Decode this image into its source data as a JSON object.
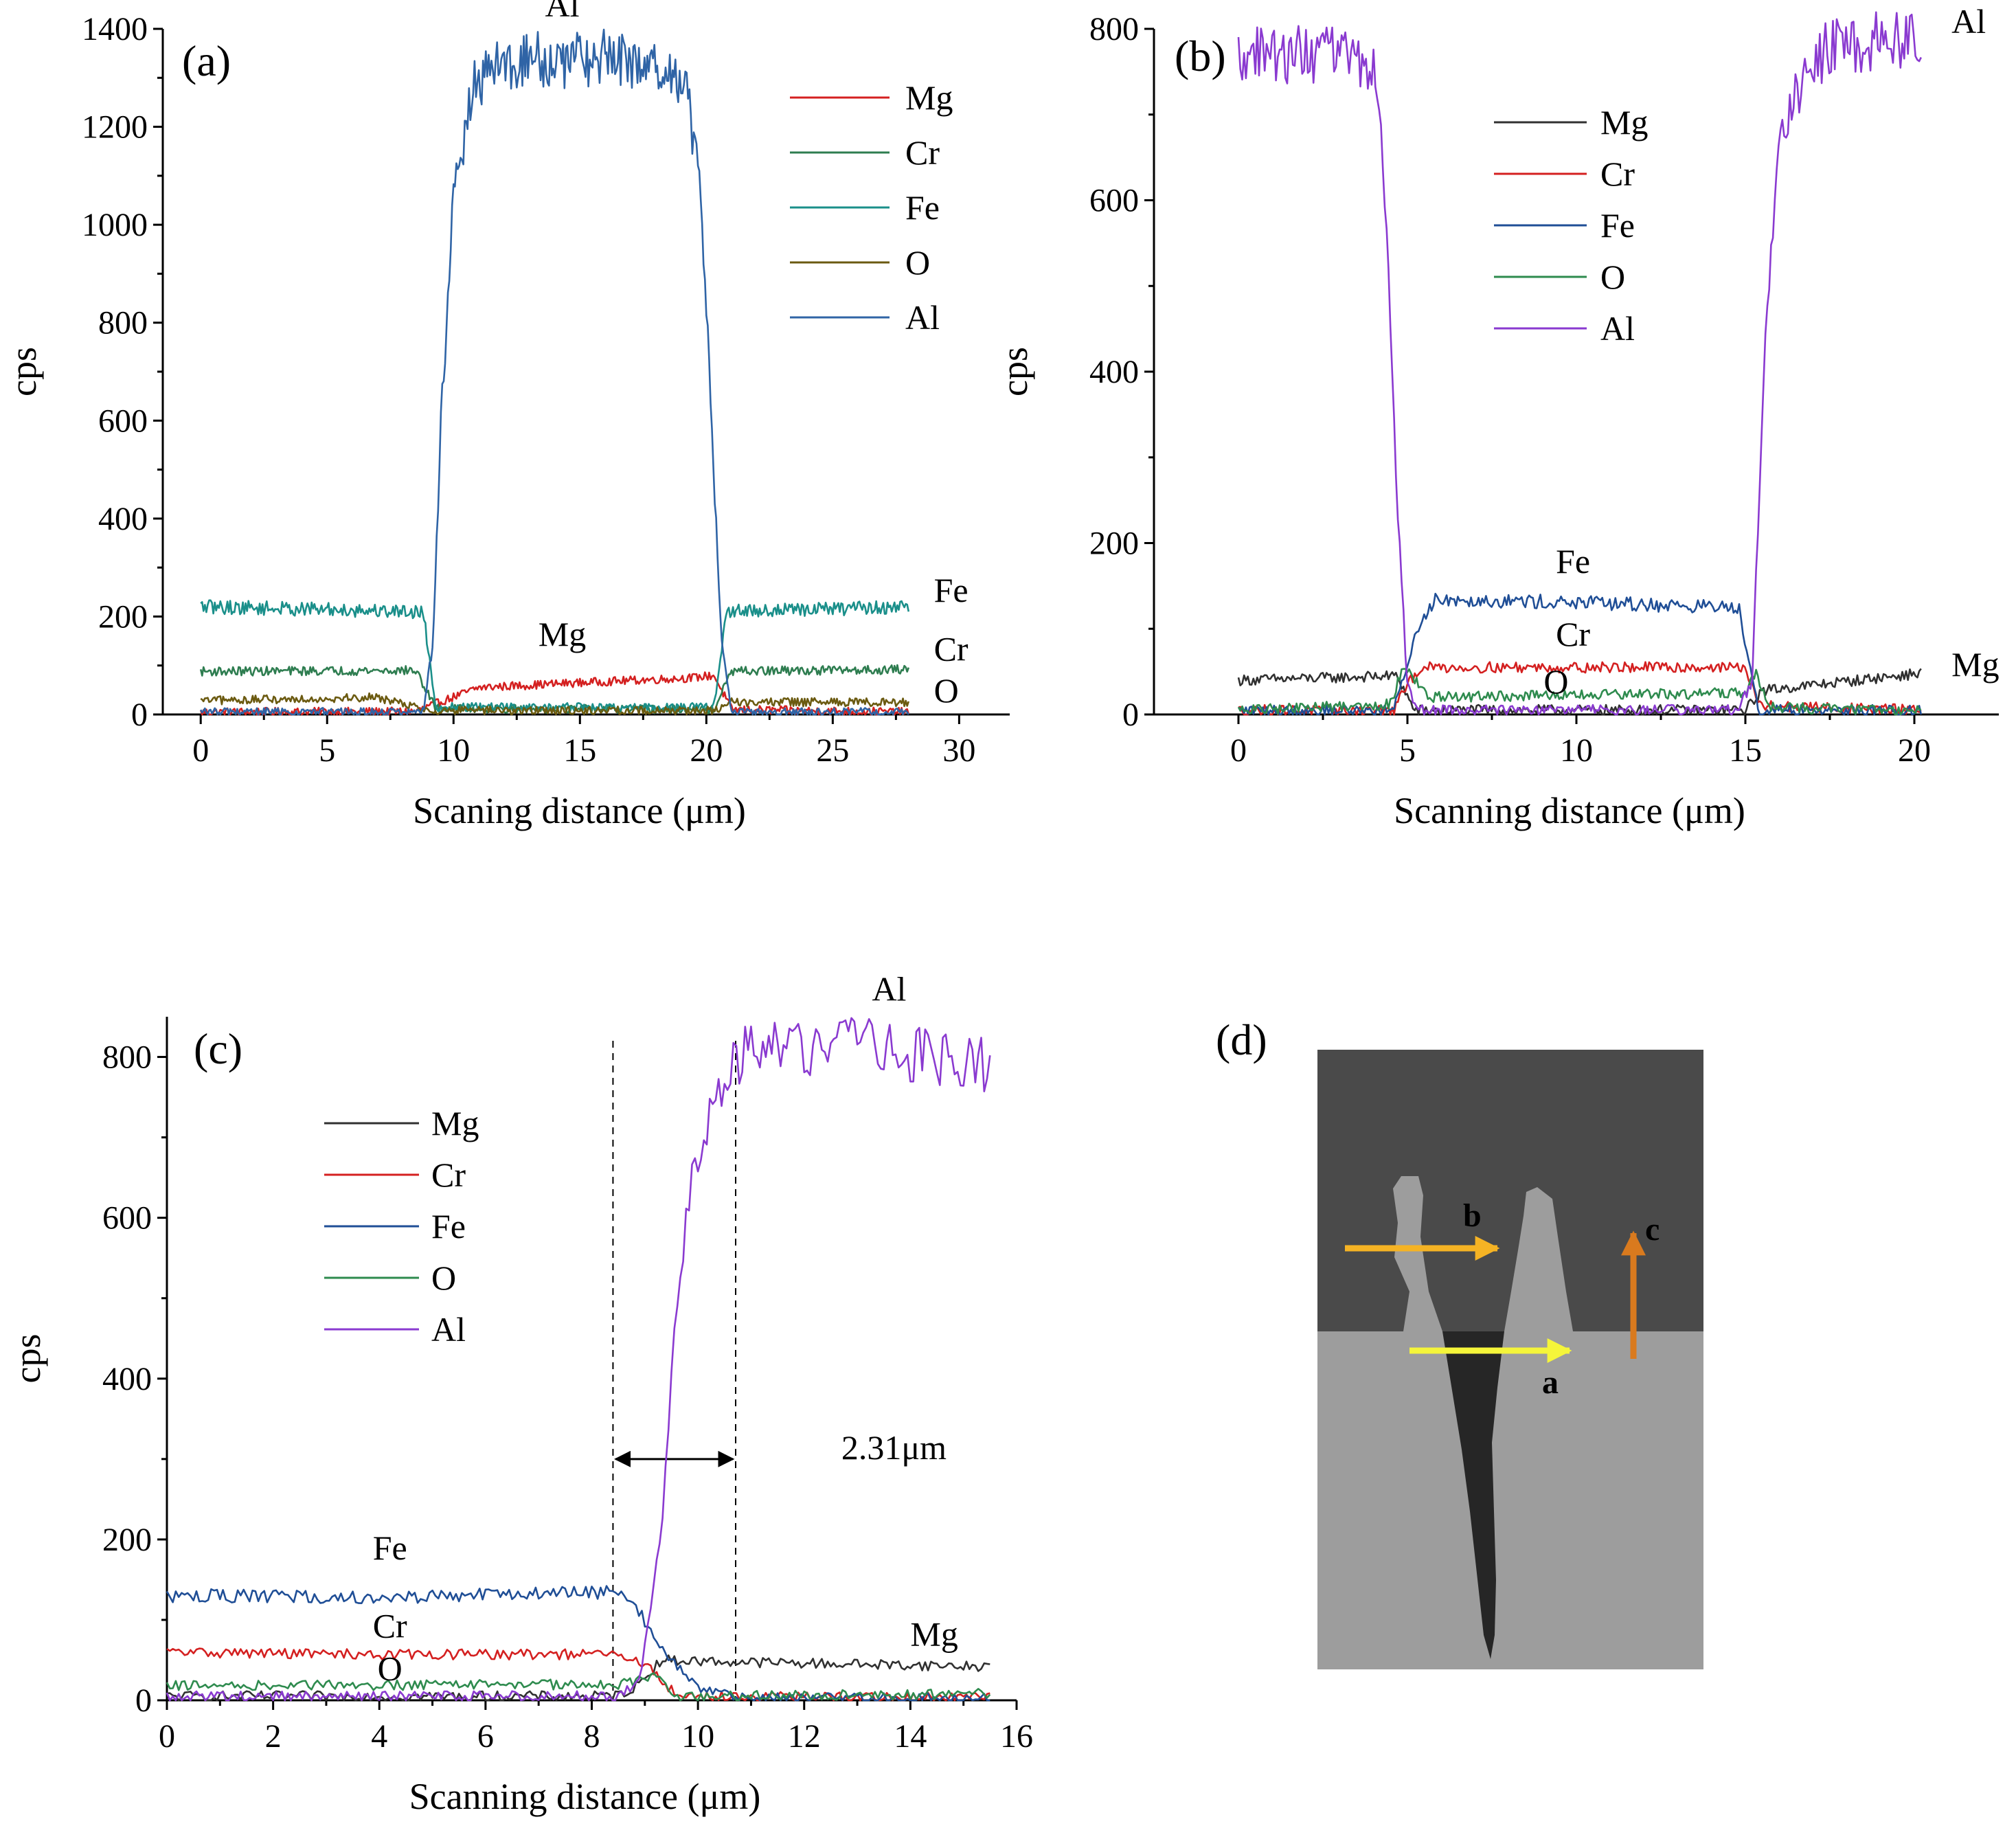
{
  "figure": {
    "colors": {
      "axis": "#000000",
      "Mg_a": "#d42020",
      "Mg": "#303030",
      "Cr_a": "#2e7d50",
      "Cr": "#d42020",
      "Fe_a": "#1a8f8a",
      "Fe": "#1f4e96",
      "O_a": "#6b5a10",
      "O": "#2e8b4e",
      "Al_a": "#2f64a6",
      "Al": "#8a3ad0"
    },
    "image_d": {
      "label": "(d)",
      "markers": {
        "a": "a",
        "b": "b",
        "c": "c"
      },
      "colors": {
        "arrow_a": "#f5f53a",
        "arrow_b": "#f5b324",
        "arrow_c": "#d97a1e",
        "alloy_bg": "#9d9d9d",
        "resin_bg": "#4a4a4a",
        "crack": "#252525"
      }
    }
  },
  "chart_data": [
    {
      "id": "a",
      "label": "(a)",
      "type": "line",
      "xlabel": "Scaning distance (μm)",
      "ylabel": "cps",
      "xlim": [
        -1.5,
        32
      ],
      "ylim": [
        0,
        1400
      ],
      "xticks": [
        0,
        5,
        10,
        15,
        20,
        25,
        30
      ],
      "yticks": [
        0,
        200,
        400,
        600,
        800,
        1000,
        1200,
        1400
      ],
      "legend": {
        "position": "top-right",
        "entries": [
          "Mg",
          "Cr",
          "Fe",
          "O",
          "Al"
        ]
      },
      "annotations": [
        {
          "text": "Al",
          "x": 14.3,
          "y": 1425
        },
        {
          "text": "Mg",
          "x": 14.3,
          "y": 140
        },
        {
          "text": "Fe",
          "x": 29.0,
          "y": 230
        },
        {
          "text": "Cr",
          "x": 29.0,
          "y": 110
        },
        {
          "text": "O",
          "x": 29.0,
          "y": 25
        }
      ],
      "series": [
        {
          "name": "Mg",
          "color_key": "Mg_a",
          "x": [
            0,
            8.5,
            9.3,
            11,
            15,
            19.5,
            20.3,
            21,
            28
          ],
          "y": [
            5,
            6,
            22,
            55,
            65,
            75,
            80,
            10,
            5
          ]
        },
        {
          "name": "Cr",
          "color_key": "Cr_a",
          "x": [
            0,
            8.5,
            9.3,
            20.3,
            21,
            28
          ],
          "y": [
            88,
            90,
            12,
            10,
            88,
            92
          ]
        },
        {
          "name": "Fe",
          "color_key": "Fe_a",
          "x": [
            0,
            8.8,
            9.3,
            20.3,
            20.8,
            28
          ],
          "y": [
            220,
            210,
            15,
            15,
            210,
            220
          ]
        },
        {
          "name": "O",
          "color_key": "O_a",
          "x": [
            0,
            7,
            9,
            20.5,
            21,
            28
          ],
          "y": [
            28,
            35,
            8,
            8,
            25,
            25
          ]
        },
        {
          "name": "Al",
          "color_key": "Al_a",
          "x": [
            0,
            8.8,
            9.2,
            9.5,
            10,
            10.7,
            11.5,
            13,
            16,
            18.5,
            19.3,
            19.8,
            20.2,
            20.6,
            21,
            28
          ],
          "y": [
            5,
            5,
            150,
            600,
            1050,
            1270,
            1320,
            1335,
            1340,
            1320,
            1250,
            1050,
            600,
            150,
            5,
            5
          ]
        }
      ]
    },
    {
      "id": "b",
      "label": "(b)",
      "type": "line",
      "xlabel": "Scanning distance (μm)",
      "ylabel": "cps",
      "xlim": [
        -2.5,
        22.5
      ],
      "ylim": [
        0,
        800
      ],
      "xticks": [
        0,
        5,
        10,
        15,
        20
      ],
      "yticks": [
        0,
        200,
        400,
        600,
        800
      ],
      "legend": {
        "position": "top-center",
        "entries": [
          "Mg",
          "Cr",
          "Fe",
          "O",
          "Al"
        ]
      },
      "annotations": [
        {
          "text": "Al",
          "x": 21.1,
          "y": 795
        },
        {
          "text": "Fe",
          "x": 9.9,
          "y": 165
        },
        {
          "text": "Cr",
          "x": 9.9,
          "y": 80
        },
        {
          "text": "O",
          "x": 9.4,
          "y": 25
        },
        {
          "text": "Mg",
          "x": 21.1,
          "y": 45
        }
      ],
      "series": [
        {
          "name": "Mg",
          "color_key": "Mg",
          "x": [
            0,
            4.7,
            5.2,
            15.0,
            15.5,
            20.2
          ],
          "y": [
            40,
            45,
            5,
            5,
            28,
            48
          ]
        },
        {
          "name": "Cr",
          "color_key": "Cr",
          "x": [
            0,
            4.6,
            5.0,
            5.4,
            15.0,
            15.4,
            20.2
          ],
          "y": [
            5,
            5,
            35,
            55,
            55,
            10,
            5
          ]
        },
        {
          "name": "Fe",
          "color_key": "Fe",
          "x": [
            0,
            4.6,
            5.3,
            5.8,
            14.8,
            15.4,
            20.2
          ],
          "y": [
            5,
            5,
            100,
            135,
            125,
            5,
            5
          ]
        },
        {
          "name": "O",
          "color_key": "O",
          "x": [
            0,
            4.5,
            4.9,
            5.6,
            15.0,
            15.3,
            15.7,
            20.2
          ],
          "y": [
            5,
            12,
            60,
            20,
            25,
            50,
            8,
            5
          ]
        },
        {
          "name": "Al",
          "color_key": "Al",
          "x": [
            0,
            3.5,
            4.1,
            4.4,
            4.7,
            5.0,
            5.4,
            14.8,
            15.2,
            15.6,
            16.0,
            16.6,
            17.5,
            20.2
          ],
          "y": [
            770,
            770,
            740,
            550,
            250,
            30,
            5,
            5,
            40,
            450,
            660,
            730,
            780,
            790
          ]
        }
      ]
    },
    {
      "id": "c",
      "label": "(c)",
      "type": "line",
      "xlabel": "Scanning distance (μm)",
      "ylabel": "cps",
      "xlim": [
        0,
        16
      ],
      "ylim": [
        0,
        850
      ],
      "xticks": [
        0,
        2,
        4,
        6,
        8,
        10,
        12,
        14,
        16
      ],
      "yticks": [
        0,
        200,
        400,
        600,
        800
      ],
      "legend": {
        "position": "top-left",
        "entries": [
          "Mg",
          "Cr",
          "Fe",
          "O",
          "Al"
        ]
      },
      "annotations": [
        {
          "text": "Al",
          "x": 13.6,
          "y": 870
        },
        {
          "text": "Fe",
          "x": 4.2,
          "y": 175
        },
        {
          "text": "Cr",
          "x": 4.2,
          "y": 78
        },
        {
          "text": "O",
          "x": 4.2,
          "y": 25
        },
        {
          "text": "Mg",
          "x": 14.0,
          "y": 68
        },
        {
          "text": "2.31μm",
          "x": 12.7,
          "y": 300
        }
      ],
      "markers": {
        "vlines": [
          8.4,
          10.71
        ],
        "arrow_y": 300
      },
      "series": [
        {
          "name": "Mg",
          "color_key": "Mg",
          "x": [
            0,
            8.4,
            8.8,
            9.3,
            10.5,
            15.5
          ],
          "y": [
            5,
            5,
            15,
            50,
            48,
            42
          ]
        },
        {
          "name": "Cr",
          "color_key": "Cr",
          "x": [
            0,
            4,
            8.4,
            8.8,
            9.2,
            9.6,
            15.5
          ],
          "y": [
            60,
            57,
            57,
            50,
            35,
            5,
            3
          ]
        },
        {
          "name": "Fe",
          "color_key": "Fe",
          "x": [
            0,
            4,
            8.5,
            8.9,
            9.3,
            10.0,
            10.8,
            15.5
          ],
          "y": [
            130,
            128,
            135,
            110,
            65,
            15,
            3,
            3
          ]
        },
        {
          "name": "O",
          "color_key": "O",
          "x": [
            0,
            8.5,
            8.9,
            9.2,
            9.6,
            15.5
          ],
          "y": [
            18,
            20,
            25,
            35,
            5,
            8
          ]
        },
        {
          "name": "Al",
          "color_key": "Al",
          "x": [
            0,
            8.5,
            8.9,
            9.3,
            9.6,
            9.9,
            10.3,
            10.7,
            11.5,
            13,
            15.5
          ],
          "y": [
            5,
            5,
            25,
            200,
            500,
            650,
            740,
            800,
            810,
            815,
            790
          ]
        }
      ]
    }
  ]
}
